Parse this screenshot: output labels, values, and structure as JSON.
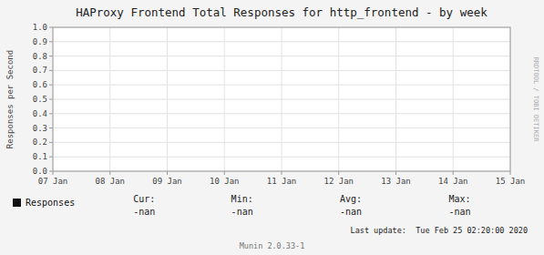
{
  "chart_data": {
    "type": "line",
    "title": "HAProxy Frontend Total Responses for http_frontend - by week",
    "y_label": "Responses per Second",
    "categories": [
      "07 Jan",
      "08 Jan",
      "09 Jan",
      "10 Jan",
      "11 Jan",
      "12 Jan",
      "13 Jan",
      "14 Jan",
      "15 Jan"
    ],
    "series": [
      {
        "name": "Responses",
        "color": "#111111"
      }
    ],
    "ylim": [
      0.0,
      1.0
    ],
    "yticks": [
      {
        "value": 0.0,
        "label": "0.0"
      },
      0.1,
      0.2,
      0.3,
      0.4,
      0.5,
      0.6,
      0.7,
      0.8,
      0.9,
      {
        "value": 1.0,
        "label": "1.0"
      }
    ],
    "grid": true,
    "legend": "bottom",
    "annotations": [
      "Cur:",
      "-nan",
      "Min:",
      "-nan",
      "Avg:",
      "-nan",
      "Max:",
      "-nan",
      "Last update:  Tue Feb 25 02:20:00 2020",
      "Munin 2.0.33-1",
      "RRDTOOL / TOBI OETIKER"
    ]
  }
}
